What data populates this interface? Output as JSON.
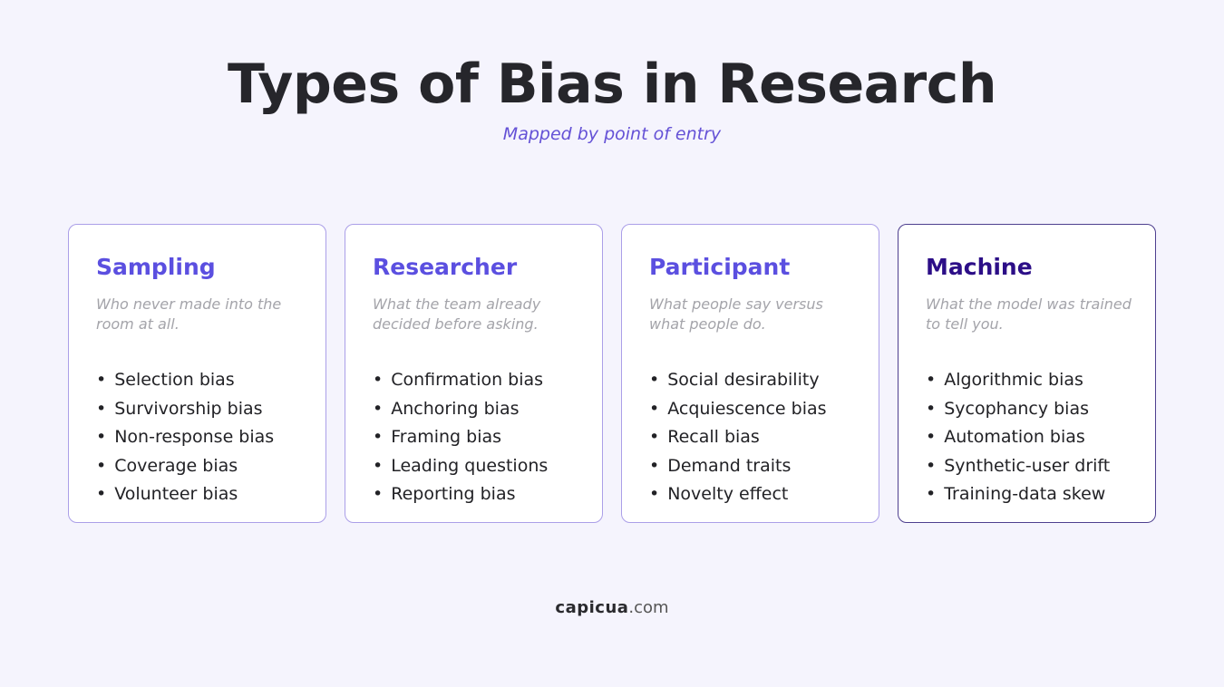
{
  "header": {
    "title": "Types of Bias in Research",
    "subtitle": "Mapped by point of entry"
  },
  "cards": [
    {
      "title": "Sampling",
      "description": "Who never made into the room at all.",
      "items": [
        "Selection bias",
        "Survivorship bias",
        "Non-response bias",
        "Coverage bias",
        "Volunteer bias"
      ]
    },
    {
      "title": "Researcher",
      "description": "What the team already decided before asking.",
      "items": [
        "Confirmation bias",
        "Anchoring bias",
        "Framing bias",
        "Leading questions",
        "Reporting bias"
      ]
    },
    {
      "title": "Participant",
      "description": "What people say versus what people do.",
      "items": [
        "Social desirability",
        "Acquiescence bias",
        "Recall bias",
        "Demand traits",
        "Novelty effect"
      ]
    },
    {
      "title": "Machine",
      "description": "What the model was trained to tell you.",
      "items": [
        "Algorithmic bias",
        "Sycophancy bias",
        "Automation bias",
        "Synthetic-user drift",
        "Training-data skew"
      ]
    }
  ],
  "footer": {
    "brand": "capicua",
    "domain": ".com"
  }
}
